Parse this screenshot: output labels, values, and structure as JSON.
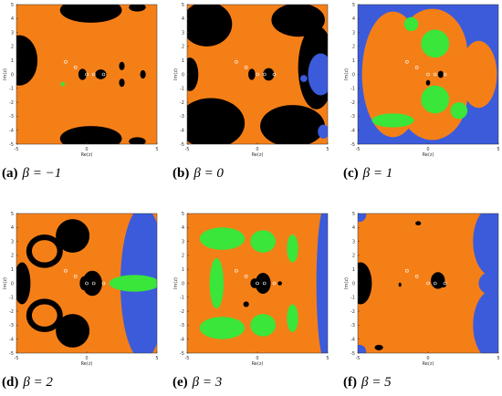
{
  "axes": {
    "xlabel": "Re(z)",
    "ylabel": "Im(z)",
    "xlim": [
      -5,
      5
    ],
    "ylim": [
      -5,
      5
    ],
    "xticks": [
      -5,
      0,
      5
    ],
    "yticks": [
      5,
      4,
      3,
      2,
      1,
      0,
      -1,
      -2,
      -3,
      -4,
      -5
    ]
  },
  "panels": [
    {
      "label": "(a)",
      "caption": "β = −1"
    },
    {
      "label": "(b)",
      "caption": "β = 0"
    },
    {
      "label": "(c)",
      "caption": "β = 1"
    },
    {
      "label": "(d)",
      "caption": "β = 2"
    },
    {
      "label": "(e)",
      "caption": "β = 3"
    },
    {
      "label": "(f)",
      "caption": "β = 5"
    }
  ]
}
